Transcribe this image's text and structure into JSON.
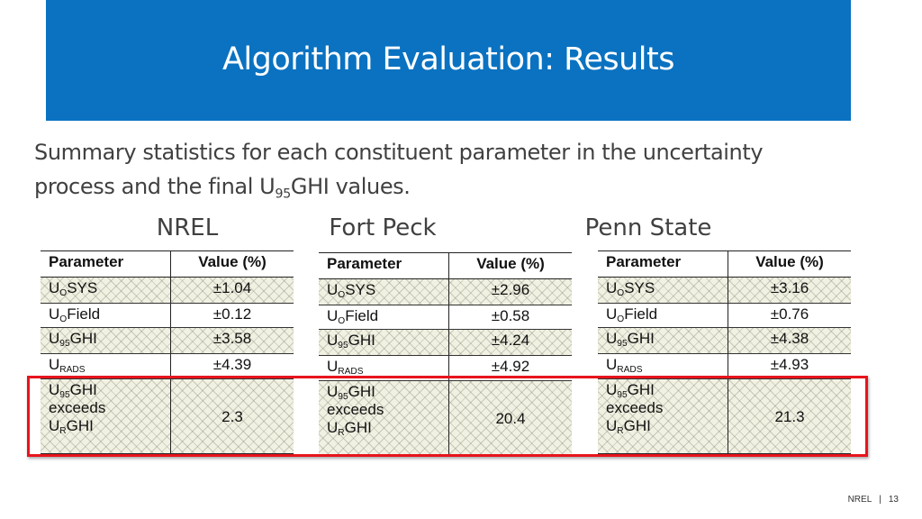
{
  "header": {
    "title": "Algorithm Evaluation: Results"
  },
  "subtitle": {
    "text": "Summary statistics for each constituent parameter in the uncertainty process and the final U",
    "sub": "95",
    "rest": "GHI values."
  },
  "tables": [
    {
      "caption": "NREL",
      "columns": [
        "Parameter",
        "Value (%)"
      ],
      "rows": [
        [
          [
            [
              {
                "text": "U"
              },
              {
                "text": "O",
                "sub": true
              },
              {
                "text": "SYS"
              }
            ]
          ],
          "±1.04"
        ],
        [
          [
            [
              {
                "text": "U"
              },
              {
                "text": "O",
                "sub": true
              },
              {
                "text": "Field"
              }
            ]
          ],
          "±0.12"
        ],
        [
          [
            [
              {
                "text": "U"
              },
              {
                "text": "95",
                "sub": true
              },
              {
                "text": "GHI"
              }
            ]
          ],
          "±3.58"
        ],
        [
          [
            [
              {
                "text": "U"
              },
              {
                "text": "RADS",
                "sub": true
              }
            ]
          ],
          "±4.39"
        ],
        [
          [
            [
              {
                "text": "U"
              },
              {
                "text": "95",
                "sub": true
              },
              {
                "text": "GHI"
              }
            ],
            [
              {
                "text": "exceeds"
              }
            ],
            [
              {
                "text": "U"
              },
              {
                "text": "R",
                "sub": true
              },
              {
                "text": "GHI"
              }
            ]
          ],
          "2.3"
        ]
      ]
    },
    {
      "caption": "Fort Peck",
      "columns": [
        "Parameter",
        "Value (%)"
      ],
      "rows": [
        [
          [
            [
              {
                "text": "U"
              },
              {
                "text": "O",
                "sub": true
              },
              {
                "text": "SYS"
              }
            ]
          ],
          "±2.96"
        ],
        [
          [
            [
              {
                "text": "U"
              },
              {
                "text": "O",
                "sub": true
              },
              {
                "text": "Field"
              }
            ]
          ],
          "±0.58"
        ],
        [
          [
            [
              {
                "text": "U"
              },
              {
                "text": "95",
                "sub": true
              },
              {
                "text": "GHI"
              }
            ]
          ],
          "±4.24"
        ],
        [
          [
            [
              {
                "text": "U"
              },
              {
                "text": "RADS",
                "sub": true
              }
            ]
          ],
          "±4.92"
        ],
        [
          [
            [
              {
                "text": "U"
              },
              {
                "text": "95",
                "sub": true
              },
              {
                "text": "GHI"
              }
            ],
            [
              {
                "text": "exceeds"
              }
            ],
            [
              {
                "text": "U"
              },
              {
                "text": "R",
                "sub": true
              },
              {
                "text": "GHI"
              }
            ]
          ],
          "20.4"
        ]
      ]
    },
    {
      "caption": "Penn State",
      "columns": [
        "Parameter",
        "Value (%)"
      ],
      "rows": [
        [
          [
            [
              {
                "text": "U"
              },
              {
                "text": "O",
                "sub": true
              },
              {
                "text": "SYS"
              }
            ]
          ],
          "±3.16"
        ],
        [
          [
            [
              {
                "text": "U"
              },
              {
                "text": "O",
                "sub": true
              },
              {
                "text": "Field"
              }
            ]
          ],
          "±0.76"
        ],
        [
          [
            [
              {
                "text": "U"
              },
              {
                "text": "95",
                "sub": true
              },
              {
                "text": "GHI"
              }
            ]
          ],
          "±4.38"
        ],
        [
          [
            [
              {
                "text": "U"
              },
              {
                "text": "RADS",
                "sub": true
              }
            ]
          ],
          "±4.93"
        ],
        [
          [
            [
              {
                "text": "U"
              },
              {
                "text": "95",
                "sub": true
              },
              {
                "text": "GHI"
              }
            ],
            [
              {
                "text": "exceeds"
              }
            ],
            [
              {
                "text": "U"
              },
              {
                "text": "R",
                "sub": true
              },
              {
                "text": "GHI"
              }
            ]
          ],
          "21.3"
        ]
      ]
    }
  ],
  "footer": {
    "org": "NREL",
    "separator": "|",
    "page": "13"
  }
}
